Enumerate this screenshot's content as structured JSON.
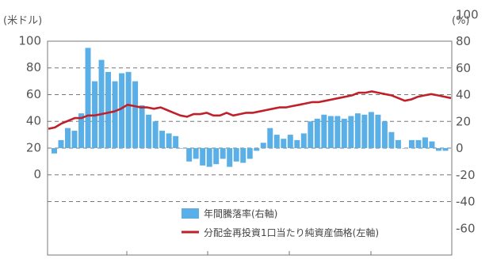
{
  "chart_data": {
    "type": "bar+line",
    "left_axis": {
      "unit_label": "(米ドル)",
      "ylim": [
        0,
        100
      ],
      "ticks": [
        0,
        20,
        40,
        60,
        80,
        100
      ]
    },
    "right_axis": {
      "unit_label": "(%)",
      "ylim": [
        -60,
        100
      ],
      "ticks": [
        -60,
        -40,
        -20,
        0,
        20,
        40,
        60,
        80,
        100
      ]
    },
    "grid": "dashed horizontal",
    "legend_position": "bottom-center",
    "colors": {
      "bar": "#5AAFE6",
      "line": "#C0202A"
    },
    "series": [
      {
        "name": "年間騰落率(右軸)",
        "kind": "bar",
        "axis": "right",
        "values": [
          -4,
          6,
          15,
          13,
          26,
          75,
          50,
          66,
          57,
          50,
          56,
          57,
          50,
          32,
          25,
          20,
          13,
          11,
          9,
          0,
          -10,
          -8,
          -13,
          -14,
          -12,
          -8,
          -14,
          -10,
          -11,
          -8,
          -2,
          4,
          15,
          10,
          7,
          10,
          6,
          11,
          20,
          22,
          25,
          24,
          24,
          22,
          24,
          26,
          25,
          27,
          25,
          20,
          12,
          6,
          0,
          6,
          6,
          8,
          5,
          -2,
          -2
        ]
      },
      {
        "name": "分配金再投資1口当たり純資産価格(左軸)",
        "kind": "line",
        "axis": "left",
        "values": [
          34,
          35,
          38,
          40,
          42,
          42,
          44,
          44,
          45,
          46,
          47,
          49,
          52,
          51,
          50,
          50,
          49,
          50,
          48,
          46,
          44,
          43,
          45,
          45,
          46,
          44,
          44,
          46,
          44,
          45,
          46,
          46,
          47,
          48,
          49,
          50,
          50,
          51,
          52,
          53,
          54,
          54,
          55,
          56,
          57,
          58,
          59,
          61,
          61,
          62,
          61,
          60,
          59,
          57,
          55,
          56,
          58,
          59,
          60,
          59,
          58,
          57
        ]
      }
    ]
  }
}
